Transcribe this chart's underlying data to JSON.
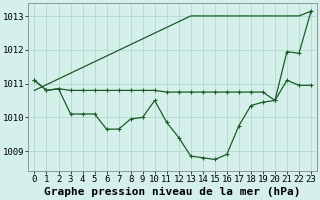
{
  "background_color": "#d5f0ea",
  "grid_color": "#aad4cb",
  "line_color": "#1a5c28",
  "title": "Graphe pression niveau de la mer (hPa)",
  "xlim": [
    -0.5,
    23.5
  ],
  "ylim": [
    1008.4,
    1013.4
  ],
  "yticks": [
    1009,
    1010,
    1011,
    1012,
    1013
  ],
  "xticks": [
    0,
    1,
    2,
    3,
    4,
    5,
    6,
    7,
    8,
    9,
    10,
    11,
    12,
    13,
    14,
    15,
    16,
    17,
    18,
    19,
    20,
    21,
    22,
    23
  ],
  "line_straight": [
    1010.8,
    1010.97,
    1011.14,
    1011.31,
    1011.48,
    1011.65,
    1011.82,
    1011.99,
    1012.16,
    1012.33,
    1012.5,
    1012.67,
    1012.84,
    1013.01,
    1013.01,
    1013.01,
    1013.01,
    1013.01,
    1013.01,
    1013.01,
    1013.01,
    1013.01,
    1013.01,
    1013.15
  ],
  "line_flat": [
    1011.1,
    1010.8,
    1010.85,
    1010.8,
    1010.8,
    1010.8,
    1010.8,
    1010.8,
    1010.8,
    1010.8,
    1010.8,
    1010.75,
    1010.75,
    1010.75,
    1010.75,
    1010.75,
    1010.75,
    1010.75,
    1010.75,
    1010.75,
    1010.5,
    1011.1,
    1010.95,
    1010.95
  ],
  "line_curve": [
    1011.1,
    1010.8,
    1010.85,
    1010.1,
    1010.1,
    1010.1,
    1009.65,
    1009.65,
    1009.95,
    1010.0,
    1010.5,
    1009.85,
    1009.4,
    1008.85,
    1008.8,
    1008.75,
    1008.9,
    1009.75,
    1010.35,
    1010.45,
    1010.5,
    1011.95,
    1011.9,
    1013.15
  ],
  "title_fontsize": 8,
  "tick_fontsize": 6.5
}
